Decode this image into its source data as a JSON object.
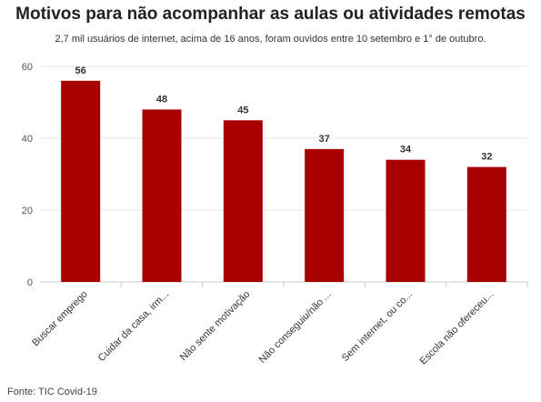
{
  "title": "Motivos para não acompanhar as aulas ou atividades remotas",
  "subtitle": "2,7 mil usuários de internet, acima de 16 anos, foram ouvidos entre 10 setembro e 1° de outubro.",
  "source": "Fonte: TIC Covid-19",
  "colors": {
    "bar": "#a80000",
    "grid": "#e6e6e6",
    "axis": "#cccccc",
    "text": "#333333"
  },
  "chart_data": {
    "type": "bar",
    "title": "Motivos para não acompanhar as aulas ou atividades remotas",
    "subtitle": "2,7 mil usuários de internet, acima de 16 anos, foram ouvidos entre 10 setembro e 1° de outubro.",
    "categories": [
      "Buscar emprego",
      "Cuidar da casa, irm...",
      "Não sente motivação",
      "Não conseguiu/não ...",
      "Sem internet, ou co...",
      "Escola não ofereceu..."
    ],
    "values": [
      56,
      48,
      45,
      37,
      34,
      32
    ],
    "data_labels": [
      "56",
      "48",
      "45",
      "37",
      "34",
      "32"
    ],
    "yticks": [
      0,
      20,
      40,
      60
    ],
    "ylim": [
      0,
      60
    ],
    "xlabel": "",
    "ylabel": "",
    "grid": true,
    "legend": "none"
  }
}
